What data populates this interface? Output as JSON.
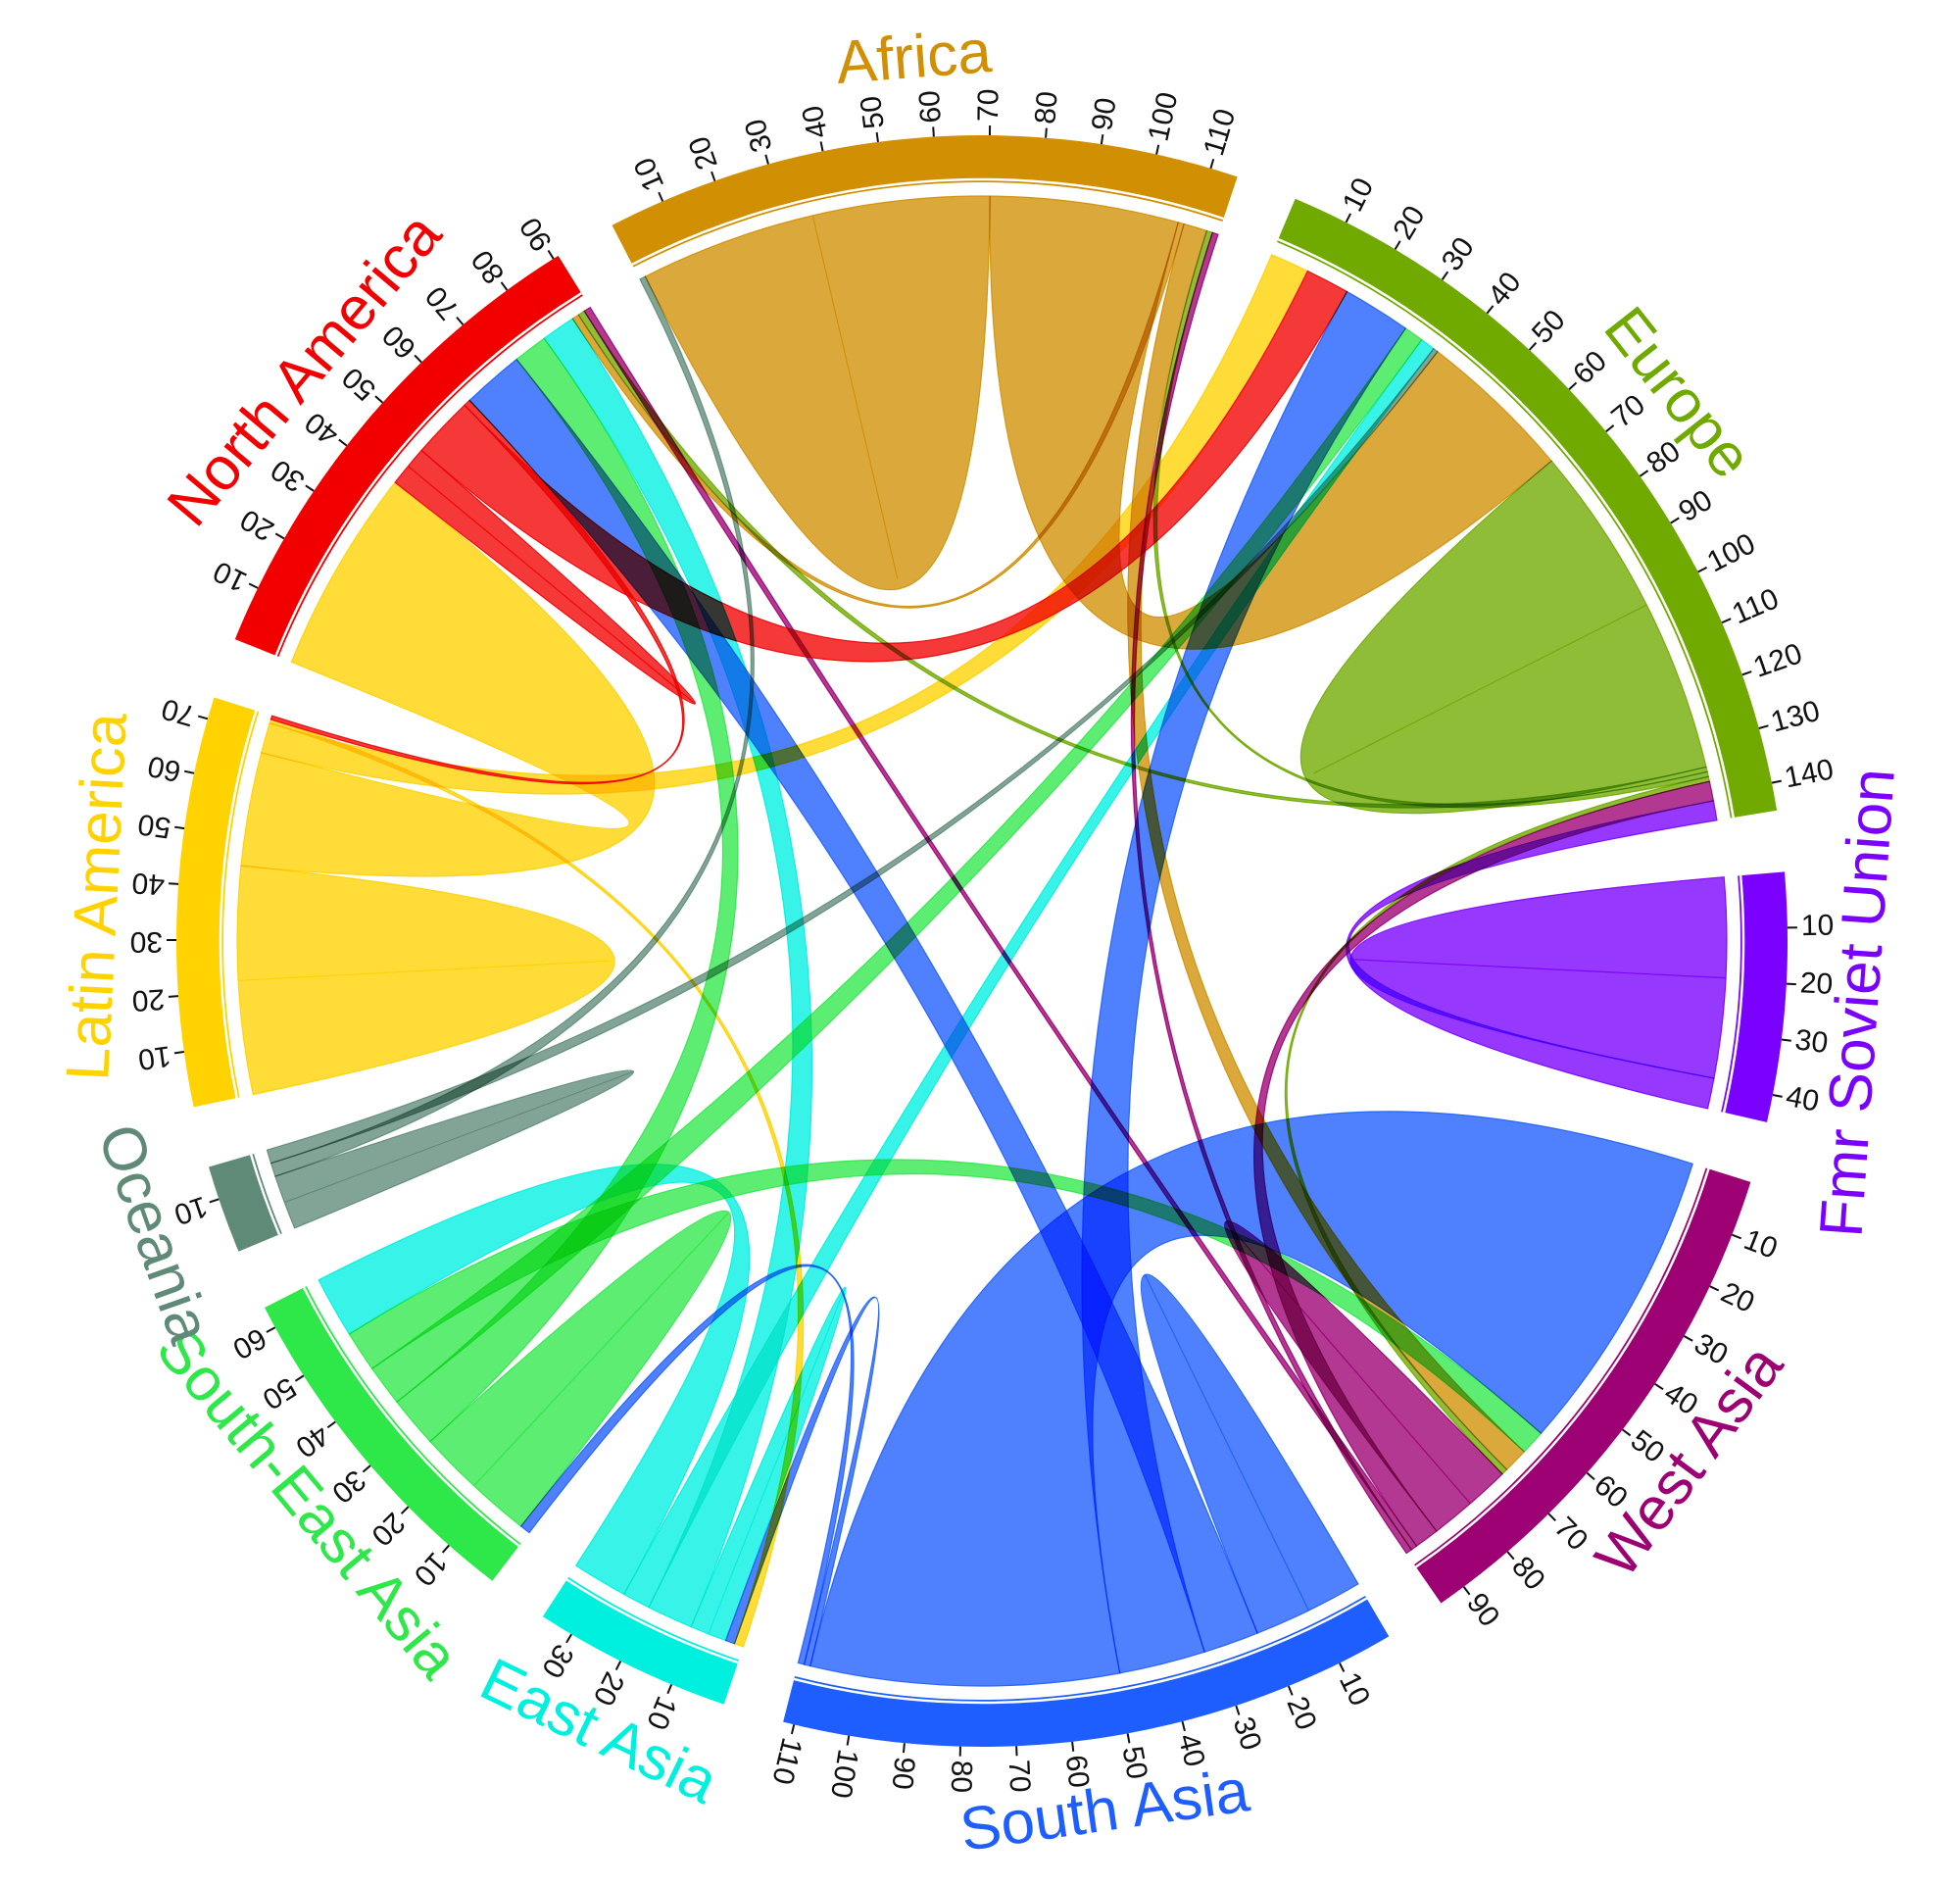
{
  "chart_data": {
    "type": "chord",
    "title": "",
    "regions": [
      {
        "id": "north_america",
        "name": "North America",
        "color": "#f20000",
        "total": 91,
        "ticks": [
          10,
          20,
          30,
          40,
          50,
          60,
          70,
          80,
          90
        ]
      },
      {
        "id": "africa",
        "name": "Africa",
        "color": "#d18f04",
        "total": 115,
        "ticks": [
          10,
          20,
          30,
          40,
          50,
          60,
          70,
          80,
          90,
          100,
          110
        ]
      },
      {
        "id": "europe",
        "name": "Europe",
        "color": "#70aa00",
        "total": 145,
        "ticks": [
          10,
          20,
          30,
          40,
          50,
          60,
          70,
          80,
          90,
          100,
          110,
          120,
          130,
          140
        ]
      },
      {
        "id": "fmr_soviet_union",
        "name": "Fmr Soviet Union",
        "color": "#7a00ff",
        "total": 45,
        "ticks": [
          10,
          20,
          30,
          40
        ]
      },
      {
        "id": "west_asia",
        "name": "West Asia",
        "color": "#9c0073",
        "total": 95,
        "ticks": [
          10,
          20,
          30,
          40,
          50,
          60,
          70,
          80,
          90
        ]
      },
      {
        "id": "south_asia",
        "name": "South Asia",
        "color": "#1e5eff",
        "total": 112,
        "ticks": [
          10,
          20,
          30,
          40,
          50,
          60,
          70,
          80,
          90,
          100,
          110
        ]
      },
      {
        "id": "east_asia",
        "name": "East Asia",
        "color": "#00f0e0",
        "total": 36,
        "ticks": [
          10,
          20,
          30
        ]
      },
      {
        "id": "south_east_asia",
        "name": "South-East Asia",
        "color": "#2ee84a",
        "total": 64,
        "ticks": [
          10,
          20,
          30,
          40,
          50,
          60
        ]
      },
      {
        "id": "oceania",
        "name": "Oceania",
        "color": "#5f8a78",
        "total": 16,
        "ticks": [
          10
        ]
      },
      {
        "id": "latin_america",
        "name": "Latin America",
        "color": "#ffd200",
        "total": 74,
        "ticks": [
          10,
          20,
          30,
          40,
          50,
          60,
          70
        ]
      }
    ],
    "flows": [
      {
        "from": "latin_america",
        "to": "latin_america",
        "value": 30
      },
      {
        "from": "latin_america",
        "to": "north_america",
        "value": 30
      },
      {
        "from": "latin_america",
        "to": "europe",
        "value": 8
      },
      {
        "from": "latin_america",
        "to": "east_asia",
        "value": 1
      },
      {
        "from": "north_america",
        "to": "north_america",
        "value": 3
      },
      {
        "from": "north_america",
        "to": "europe",
        "value": 9
      },
      {
        "from": "north_america",
        "to": "latin_america",
        "value": 1
      },
      {
        "from": "south_asia",
        "to": "south_asia",
        "value": 9
      },
      {
        "from": "south_asia",
        "to": "north_america",
        "value": 9
      },
      {
        "from": "south_asia",
        "to": "europe",
        "value": 14
      },
      {
        "from": "south_asia",
        "to": "west_asia",
        "value": 50
      },
      {
        "from": "south_asia",
        "to": "east_asia",
        "value": 1
      },
      {
        "from": "south_asia",
        "to": "south_east_asia",
        "value": 1
      },
      {
        "from": "south_east_asia",
        "to": "south_east_asia",
        "value": 6
      },
      {
        "from": "south_east_asia",
        "to": "north_america",
        "value": 5
      },
      {
        "from": "south_east_asia",
        "to": "europe",
        "value": 4
      },
      {
        "from": "south_east_asia",
        "to": "west_asia",
        "value": 4
      },
      {
        "from": "east_asia",
        "to": "east_asia",
        "value": 2
      },
      {
        "from": "east_asia",
        "to": "north_america",
        "value": 5
      },
      {
        "from": "east_asia",
        "to": "europe",
        "value": 3
      },
      {
        "from": "east_asia",
        "to": "south_east_asia",
        "value": 6
      },
      {
        "from": "oceania",
        "to": "oceania",
        "value": 2
      },
      {
        "from": "oceania",
        "to": "africa",
        "value": 1
      },
      {
        "from": "oceania",
        "to": "europe",
        "value": 1
      },
      {
        "from": "africa",
        "to": "africa",
        "value": 30
      },
      {
        "from": "africa",
        "to": "europe",
        "value": 32
      },
      {
        "from": "africa",
        "to": "north_america",
        "value": 1
      },
      {
        "from": "africa",
        "to": "west_asia",
        "value": 4
      },
      {
        "from": "europe",
        "to": "europe",
        "value": 35
      },
      {
        "from": "europe",
        "to": "north_america",
        "value": 1
      },
      {
        "from": "europe",
        "to": "africa",
        "value": 1
      },
      {
        "from": "europe",
        "to": "west_asia",
        "value": 1
      },
      {
        "from": "west_asia",
        "to": "west_asia",
        "value": 7
      },
      {
        "from": "west_asia",
        "to": "europe",
        "value": 4
      },
      {
        "from": "west_asia",
        "to": "north_america",
        "value": 1
      },
      {
        "from": "west_asia",
        "to": "africa",
        "value": 1
      },
      {
        "from": "fmr_soviet_union",
        "to": "fmr_soviet_union",
        "value": 13
      },
      {
        "from": "fmr_soviet_union",
        "to": "europe",
        "value": 4
      }
    ]
  }
}
